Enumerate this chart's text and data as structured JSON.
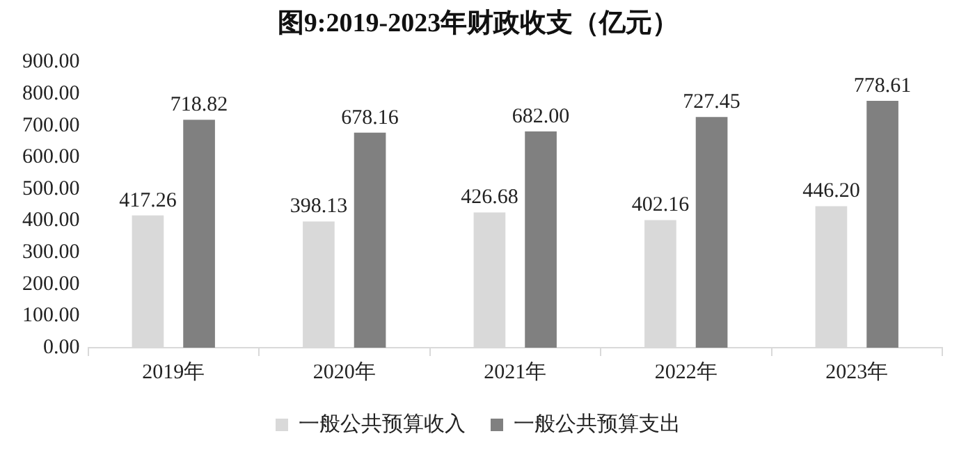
{
  "chart_data": {
    "type": "bar",
    "title": "图9:2019-2023年财政收支（亿元）",
    "categories": [
      "2019年",
      "2020年",
      "2021年",
      "2022年",
      "2023年"
    ],
    "series": [
      {
        "name": "一般公共预算收入",
        "color": "#d9d9d9",
        "values": [
          417.26,
          398.13,
          426.68,
          402.16,
          446.2
        ],
        "value_labels": [
          "417.26",
          "398.13",
          "426.68",
          "402.16",
          "446.20"
        ]
      },
      {
        "name": "一般公共预算支出",
        "color": "#808080",
        "values": [
          718.82,
          678.16,
          682,
          727.45,
          778.61
        ],
        "value_labels": [
          "718.82",
          "678.16",
          "682.00",
          "727.45",
          "778.61"
        ]
      }
    ],
    "ylim": [
      0,
      900
    ],
    "yticks": [
      {
        "value": 0,
        "label": "0.00"
      },
      {
        "value": 100,
        "label": "100.00"
      },
      {
        "value": 200,
        "label": "200.00"
      },
      {
        "value": 300,
        "label": "300.00"
      },
      {
        "value": 400,
        "label": "400.00"
      },
      {
        "value": 500,
        "label": "500.00"
      },
      {
        "value": 600,
        "label": "600.00"
      },
      {
        "value": 700,
        "label": "700.00"
      },
      {
        "value": 800,
        "label": "800.00"
      },
      {
        "value": 900,
        "label": "900.00"
      }
    ],
    "grid": false,
    "legend": "bottom"
  }
}
